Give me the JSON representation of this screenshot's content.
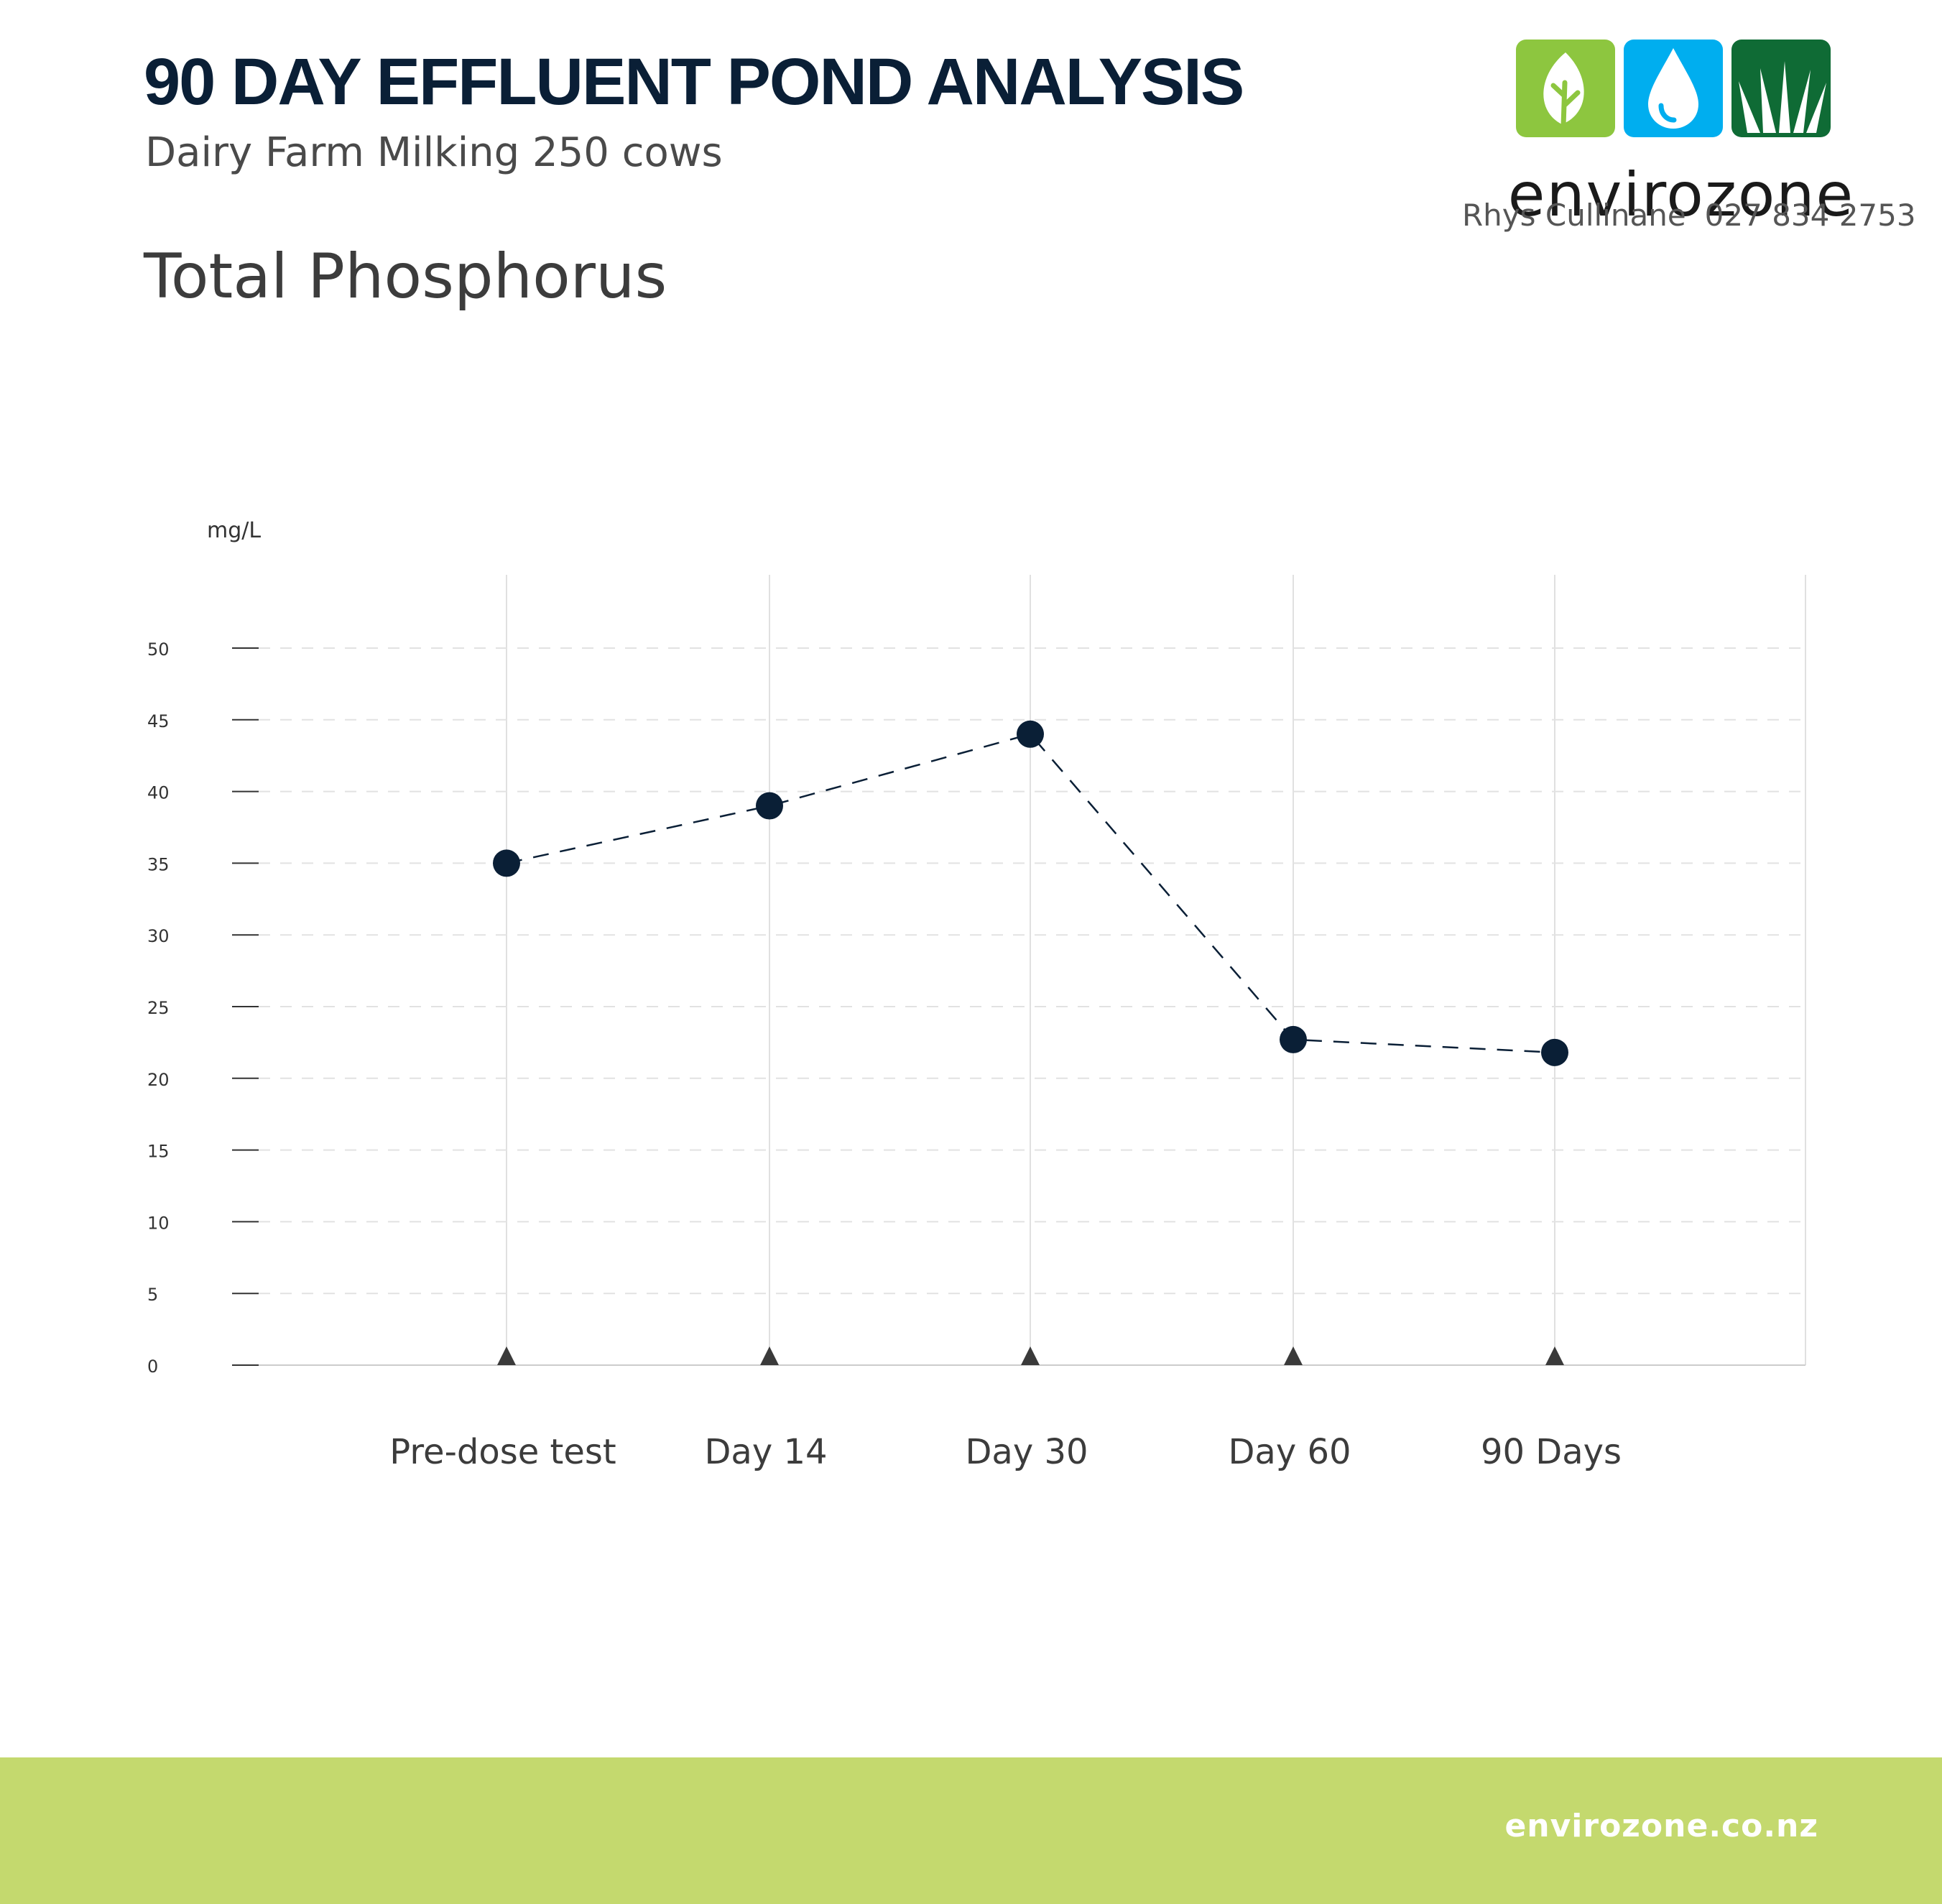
{
  "header": {
    "title": "90 DAY EFFLUENT POND ANALYSIS",
    "subtitle": "Dairy Farm Milking 250 cows",
    "section_title": "Total Phosphorus"
  },
  "brand": {
    "name": "envirozone",
    "contact_name": "Rhys Cullinane",
    "contact_phone": "027 834 2753",
    "website": "envirozone.co.nz",
    "colors": {
      "leaf_tile": "#8dc63f",
      "water_tile": "#00aeef",
      "grass_tile": "#0f6b35",
      "wordmark": "#1a1a1a",
      "footer": "#c4d96e",
      "title": "#0a1f36"
    },
    "icons": [
      "leaf-icon",
      "water-drop-icon",
      "grass-icon"
    ]
  },
  "chart_data": {
    "type": "line",
    "title": "Total Phosphorus",
    "ylabel": "mg/L",
    "xlabel": "",
    "categories": [
      "Pre-dose test",
      "Day 14",
      "Day 30",
      "Day 60",
      "90 Days"
    ],
    "series": [
      {
        "values": [
          35,
          39,
          44,
          22.7,
          21.8
        ]
      }
    ],
    "ylim": [
      0,
      50
    ],
    "yticks": [
      0,
      5,
      10,
      15,
      20,
      25,
      30,
      35,
      40,
      45,
      50
    ],
    "grid": "horizontal dashed",
    "line_style": "dashed",
    "marker_color": "#0a1f36",
    "tick_marker": "triangle"
  }
}
